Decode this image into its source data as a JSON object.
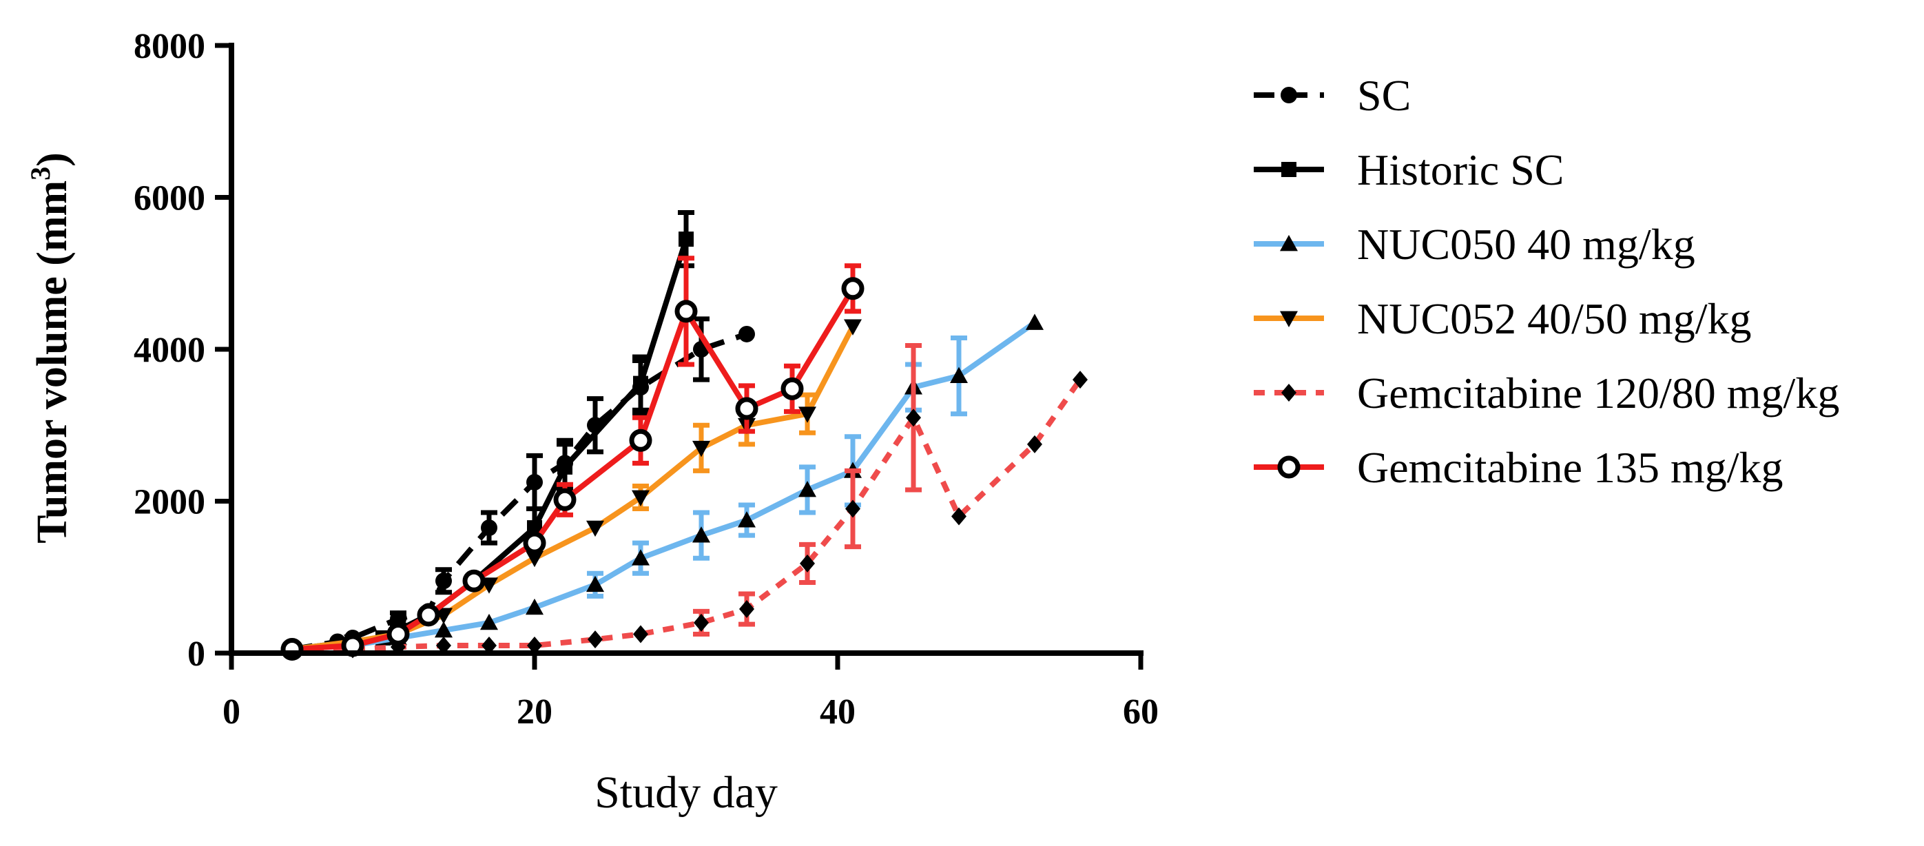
{
  "chart_data": {
    "type": "line",
    "title": "",
    "xlabel": "Study day",
    "ylabel": "Tumor volume (mm",
    "ylabel_sup": "3",
    "ylabel_close": ")",
    "xlim": [
      0,
      60
    ],
    "ylim": [
      0,
      8000
    ],
    "xticks": [
      0,
      20,
      40,
      60
    ],
    "yticks": [
      0,
      2000,
      4000,
      6000,
      8000
    ],
    "xtick_labels": [
      "0",
      "20",
      "40",
      "60"
    ],
    "ytick_labels": [
      "0",
      "2000",
      "4000",
      "6000",
      "8000"
    ],
    "grid": false,
    "legend_position": "right",
    "series": [
      {
        "name": "SC",
        "color": "#000000",
        "dash": "dashed",
        "marker": "circle",
        "x": [
          4,
          7,
          8,
          11,
          13,
          14,
          17,
          20,
          22,
          24,
          27,
          31,
          34
        ],
        "y": [
          50,
          150,
          200,
          450,
          550,
          950,
          1650,
          2250,
          2500,
          3000,
          3500,
          4000,
          4200
        ],
        "err": [
          0,
          0,
          0,
          80,
          0,
          150,
          200,
          350,
          300,
          350,
          350,
          400,
          0
        ]
      },
      {
        "name": "Historic SC",
        "color": "#000000",
        "dash": "solid",
        "marker": "square",
        "x": [
          4,
          8,
          10,
          13,
          16,
          20,
          22,
          27,
          30
        ],
        "y": [
          50,
          150,
          200,
          500,
          950,
          1650,
          2450,
          3550,
          5450
        ],
        "err": [
          0,
          0,
          0,
          0,
          0,
          250,
          300,
          350,
          350
        ]
      },
      {
        "name": "NUC050 40 mg/kg",
        "color": "#6db6ee",
        "dash": "solid",
        "marker": "triangle-up",
        "x": [
          4,
          8,
          11,
          14,
          17,
          20,
          24,
          27,
          31,
          34,
          38,
          41,
          45,
          48,
          53
        ],
        "y": [
          50,
          100,
          200,
          300,
          400,
          600,
          900,
          1250,
          1550,
          1750,
          2150,
          2400,
          3500,
          3650,
          4350
        ],
        "err": [
          0,
          0,
          0,
          0,
          0,
          0,
          150,
          200,
          300,
          200,
          300,
          450,
          300,
          500,
          0
        ]
      },
      {
        "name": "NUC052 40/50 mg/kg",
        "color": "#f7941d",
        "dash": "solid",
        "marker": "triangle-down",
        "x": [
          4,
          8,
          11,
          14,
          17,
          20,
          24,
          27,
          31,
          34,
          38,
          41
        ],
        "y": [
          50,
          150,
          250,
          500,
          900,
          1250,
          1650,
          2050,
          2700,
          3000,
          3150,
          4300
        ],
        "err": [
          0,
          0,
          0,
          0,
          0,
          0,
          0,
          150,
          300,
          250,
          250,
          0
        ]
      },
      {
        "name": "Gemcitabine 120/80 mg/kg",
        "color": "#ef4b4b",
        "dash": "dotted",
        "marker": "diamond",
        "x": [
          4,
          8,
          11,
          14,
          17,
          20,
          24,
          27,
          31,
          34,
          38,
          41,
          45,
          48,
          53,
          56
        ],
        "y": [
          50,
          50,
          80,
          100,
          100,
          100,
          180,
          250,
          400,
          580,
          1180,
          1900,
          3100,
          1800,
          2750,
          3600
        ],
        "err": [
          0,
          0,
          0,
          0,
          0,
          0,
          0,
          0,
          150,
          200,
          250,
          500,
          950,
          0,
          0,
          0
        ]
      },
      {
        "name": "Gemcitabine 135 mg/kg",
        "color": "#ee1c1c",
        "dash": "solid",
        "marker": "open-circle",
        "x": [
          4,
          8,
          11,
          13,
          16,
          20,
          22,
          27,
          30,
          34,
          37,
          41
        ],
        "y": [
          50,
          100,
          250,
          500,
          950,
          1450,
          2020,
          2800,
          4500,
          3220,
          3480,
          4800
        ],
        "err": [
          0,
          0,
          0,
          0,
          0,
          0,
          200,
          300,
          700,
          300,
          300,
          300
        ]
      }
    ]
  }
}
